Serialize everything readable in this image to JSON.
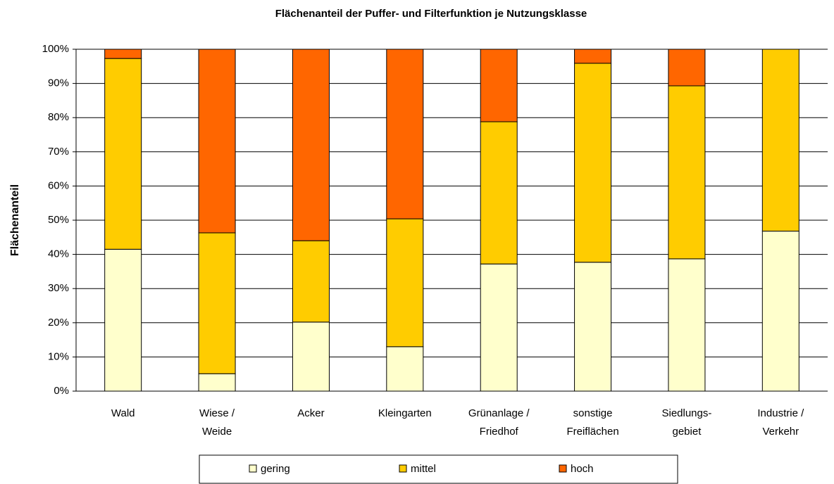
{
  "chart_data": {
    "type": "stacked_bar",
    "title": "Flächenanteil der Puffer- und Filterfunktion je Nutzungsklasse",
    "y_label": "Flächenanteil",
    "categories": [
      [
        "Wald"
      ],
      [
        "Wiese /",
        "Weide"
      ],
      [
        "Acker"
      ],
      [
        "Kleingarten"
      ],
      [
        "Grünanlage /",
        "Friedhof"
      ],
      [
        "sonstige",
        "Freiflächen"
      ],
      [
        "Siedlungs-",
        "gebiet"
      ],
      [
        "Industrie /",
        "Verkehr"
      ]
    ],
    "series": [
      {
        "name": "gering",
        "color": "#ffffcc",
        "values": [
          41.5,
          5.1,
          20.2,
          13.0,
          37.2,
          37.7,
          38.7,
          46.8
        ]
      },
      {
        "name": "mittel",
        "color": "#ffcc00",
        "values": [
          55.8,
          41.2,
          23.8,
          37.4,
          41.6,
          58.2,
          50.6,
          53.2
        ]
      },
      {
        "name": "hoch",
        "color": "#ff6600",
        "values": [
          2.7,
          53.7,
          56.0,
          49.6,
          21.2,
          4.1,
          10.7,
          0
        ]
      }
    ],
    "ylim": [
      0,
      100
    ],
    "yticks": [
      {
        "value": 0,
        "label": "0%"
      },
      {
        "value": 10,
        "label": "10%"
      },
      {
        "value": 20,
        "label": "20%"
      },
      {
        "value": 30,
        "label": "30%"
      },
      {
        "value": 40,
        "label": "40%"
      },
      {
        "value": 50,
        "label": "50%"
      },
      {
        "value": 60,
        "label": "60%"
      },
      {
        "value": 70,
        "label": "70%"
      },
      {
        "value": 80,
        "label": "80%"
      },
      {
        "value": 90,
        "label": "90%"
      },
      {
        "value": 100,
        "label": "100%"
      }
    ],
    "grid": true,
    "legend": "bottom"
  }
}
